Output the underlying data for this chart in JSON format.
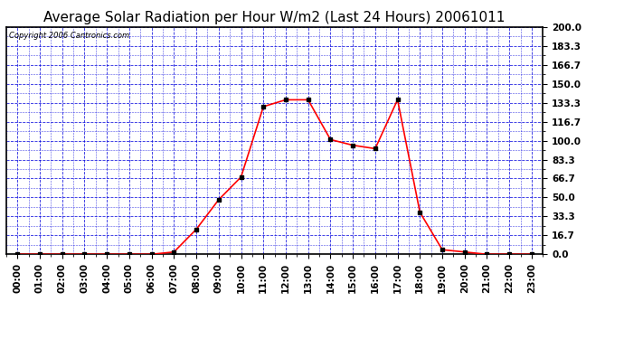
{
  "title": "Average Solar Radiation per Hour W/m2 (Last 24 Hours) 20061011",
  "copyright": "Copyright 2006 Cantronics.com",
  "hours": [
    "00:00",
    "01:00",
    "02:00",
    "03:00",
    "04:00",
    "05:00",
    "06:00",
    "07:00",
    "08:00",
    "09:00",
    "10:00",
    "11:00",
    "12:00",
    "13:00",
    "14:00",
    "15:00",
    "16:00",
    "17:00",
    "18:00",
    "19:00",
    "20:00",
    "21:00",
    "22:00",
    "23:00"
  ],
  "values": [
    0.0,
    0.0,
    0.0,
    0.0,
    0.0,
    0.0,
    0.0,
    2.0,
    22.0,
    48.0,
    68.0,
    130.0,
    136.0,
    136.0,
    101.0,
    96.0,
    93.0,
    136.0,
    37.0,
    4.0,
    2.0,
    0.0,
    0.0,
    0.0
  ],
  "line_color": "#ff0000",
  "marker_color": "#000000",
  "grid_color_major": "#0000dd",
  "grid_color_minor": "#0000dd",
  "background_color": "#ffffff",
  "plot_bg_color": "#ffffff",
  "ylim": [
    0.0,
    200.0
  ],
  "yticks": [
    0.0,
    16.7,
    33.3,
    50.0,
    66.7,
    83.3,
    100.0,
    116.7,
    133.3,
    150.0,
    166.7,
    183.3,
    200.0
  ],
  "title_fontsize": 11,
  "copyright_fontsize": 6,
  "tick_fontsize": 7.5,
  "tick_fontweight": "bold"
}
